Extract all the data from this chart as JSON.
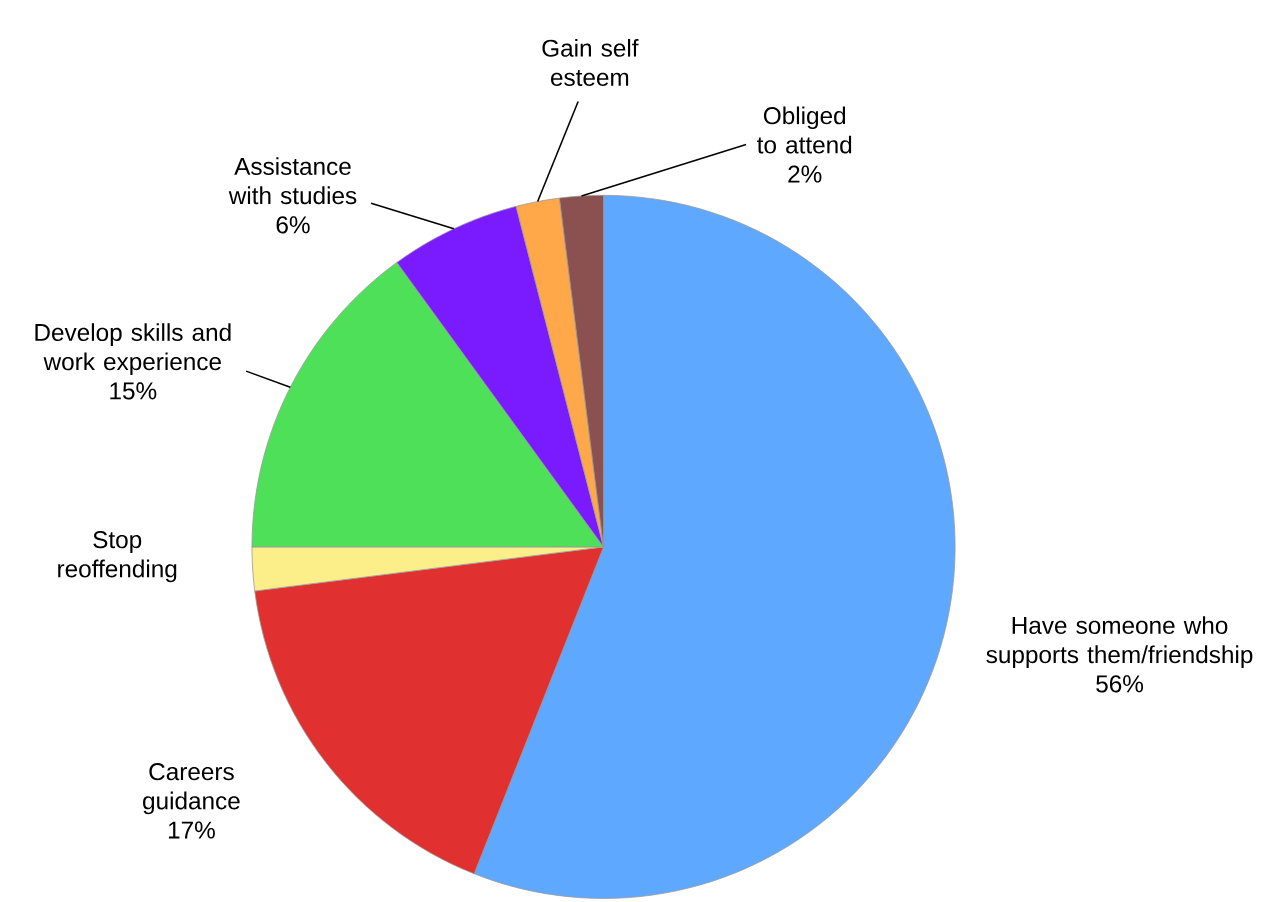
{
  "chart_data": {
    "type": "pie",
    "categories": [
      "Have someone who supports them/friendship",
      "Careers guidance",
      "Stop reoffending",
      "Develop skills and work experience",
      "Assistance with studies",
      "Gain self esteem",
      "Obliged to attend"
    ],
    "values": [
      56,
      17,
      2,
      15,
      6,
      2,
      2
    ],
    "value_labels": [
      "56%",
      "17%",
      null,
      "15%",
      "6%",
      null,
      "2%"
    ],
    "colors": [
      "#5fa8ff",
      "#e03030",
      "#fcee88",
      "#4fe05a",
      "#7a1aff",
      "#ffa84a",
      "#8b5050"
    ]
  }
}
